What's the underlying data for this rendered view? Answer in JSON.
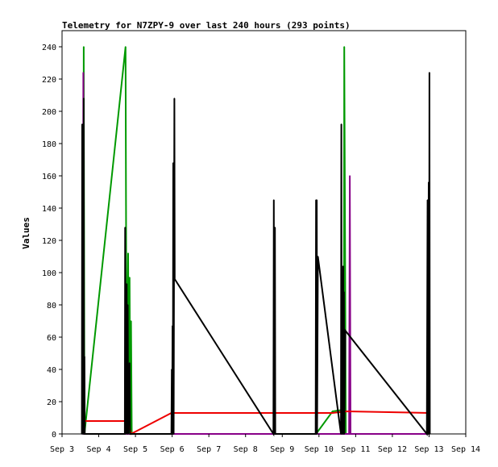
{
  "chart_data": {
    "type": "line",
    "title": "Telemetry for N7ZPY-9 over last 240 hours (293 points)",
    "xlabel": "",
    "ylabel": "Values",
    "x_tick_labels": [
      "Sep 3",
      "Sep 4",
      "Sep 5",
      "Sep 6",
      "Sep 7",
      "Sep 8",
      "Sep 9",
      "Sep 10",
      "Sep 11",
      "Sep 12",
      "Sep 13",
      "Sep 14"
    ],
    "xlim": [
      3.0,
      14.0
    ],
    "ylim": [
      0,
      250
    ],
    "y_ticks": [
      0,
      20,
      40,
      60,
      80,
      100,
      120,
      140,
      160,
      180,
      200,
      220,
      240
    ],
    "grid": false,
    "series": [
      {
        "color": "#009900",
        "points": [
          [
            3.58,
            0
          ],
          [
            3.59,
            240
          ],
          [
            3.61,
            0
          ],
          [
            4.73,
            240
          ],
          [
            4.76,
            0
          ],
          [
            4.8,
            112
          ],
          [
            4.82,
            0
          ],
          [
            4.84,
            97
          ],
          [
            4.86,
            0
          ],
          [
            4.88,
            70
          ],
          [
            4.9,
            0
          ],
          [
            9.92,
            0
          ],
          [
            10.37,
            14
          ],
          [
            10.68,
            15
          ],
          [
            10.69,
            240
          ],
          [
            10.71,
            120
          ],
          [
            10.73,
            0
          ],
          [
            12.99,
            0
          ]
        ]
      },
      {
        "color": "#880088",
        "points": [
          [
            3.57,
            0
          ],
          [
            3.58,
            224
          ],
          [
            3.6,
            0
          ],
          [
            4.78,
            0
          ],
          [
            4.8,
            0
          ],
          [
            10.82,
            0
          ],
          [
            10.84,
            160
          ],
          [
            10.86,
            0
          ],
          [
            12.99,
            0
          ]
        ]
      },
      {
        "color": "#ee0000",
        "points": [
          [
            3.6,
            8
          ],
          [
            4.73,
            8
          ],
          [
            4.82,
            6
          ],
          [
            4.88,
            0
          ],
          [
            5.98,
            13
          ],
          [
            8.78,
            13
          ],
          [
            9.9,
            13
          ],
          [
            10.37,
            13
          ],
          [
            10.75,
            14
          ],
          [
            12.99,
            13
          ]
        ]
      },
      {
        "color": "#000000",
        "points": [
          [
            3.54,
            0
          ],
          [
            3.55,
            192
          ],
          [
            3.56,
            0
          ],
          [
            3.57,
            145
          ],
          [
            3.58,
            0
          ],
          [
            3.59,
            208
          ],
          [
            3.6,
            0
          ],
          [
            3.61,
            48
          ],
          [
            3.62,
            0
          ],
          [
            4.71,
            0
          ],
          [
            4.72,
            128
          ],
          [
            4.73,
            0
          ],
          [
            4.76,
            93
          ],
          [
            4.77,
            0
          ],
          [
            4.79,
            80
          ],
          [
            4.8,
            0
          ],
          [
            4.84,
            44
          ],
          [
            4.85,
            0
          ],
          [
            5.98,
            0
          ],
          [
            5.99,
            40
          ],
          [
            6.0,
            0
          ],
          [
            6.01,
            67
          ],
          [
            6.02,
            0
          ],
          [
            6.03,
            168
          ],
          [
            6.04,
            0
          ],
          [
            6.06,
            208
          ],
          [
            6.07,
            96
          ],
          [
            8.76,
            0
          ],
          [
            8.77,
            145
          ],
          [
            8.78,
            0
          ],
          [
            8.8,
            128
          ],
          [
            8.81,
            0
          ],
          [
            9.91,
            0
          ],
          [
            9.92,
            145
          ],
          [
            9.93,
            0
          ],
          [
            9.94,
            145
          ],
          [
            9.95,
            0
          ],
          [
            9.97,
            110
          ],
          [
            10.6,
            0
          ],
          [
            10.61,
            192
          ],
          [
            10.62,
            0
          ],
          [
            10.64,
            64
          ],
          [
            10.65,
            0
          ],
          [
            10.66,
            104
          ],
          [
            10.67,
            0
          ],
          [
            10.68,
            88
          ],
          [
            10.69,
            0
          ],
          [
            10.72,
            64
          ],
          [
            12.94,
            0
          ],
          [
            12.96,
            145
          ],
          [
            12.97,
            0
          ],
          [
            12.99,
            156
          ],
          [
            13.0,
            0
          ],
          [
            13.01,
            224
          ],
          [
            13.02,
            0
          ]
        ]
      }
    ]
  }
}
